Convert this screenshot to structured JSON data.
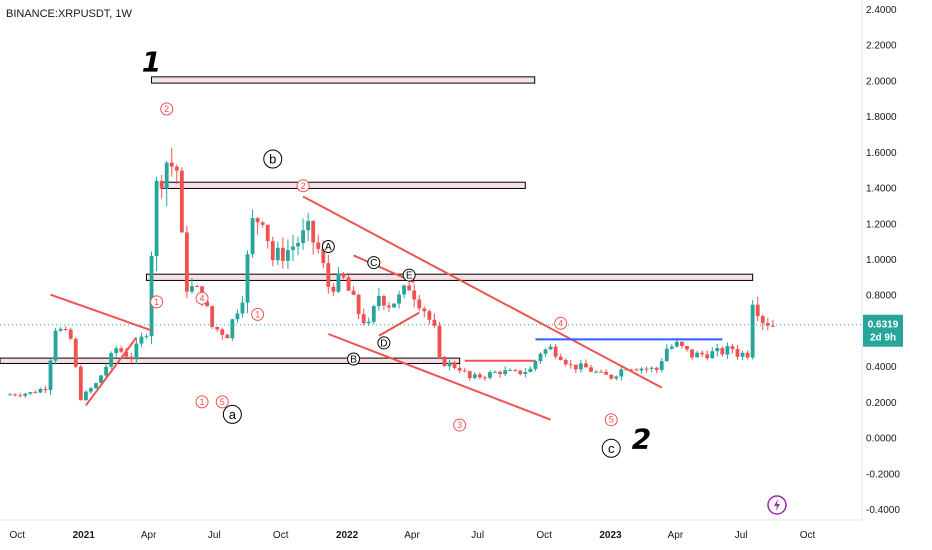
{
  "header": {
    "symbol": "BINANCE:XRPUSDT, 1W"
  },
  "price_tag": {
    "price": "0.6319",
    "countdown": "2d 9h",
    "color": "#26a69a"
  },
  "colors": {
    "up": "#26a69a",
    "down": "#ef5350",
    "trend": "#ef5350",
    "support": "#2962ff",
    "zone_fill": "#f8e1e6",
    "zone_stroke": "#000000"
  },
  "icons": {
    "flash": "lightning-icon"
  },
  "chart_data": {
    "type": "candlestick",
    "y_axis": {
      "ylim": [
        -0.45,
        2.45
      ],
      "ticks": [
        "2.4000",
        "2.2000",
        "2.0000",
        "1.8000",
        "1.6000",
        "1.4000",
        "1.2000",
        "1.0000",
        "0.8000",
        "0.6000",
        "0.4000",
        "0.2000",
        "0.0000",
        "-0.2000",
        "-0.4000"
      ]
    },
    "x_axis": {
      "ticks": [
        {
          "label": "Oct",
          "date": "2020-10-01",
          "year": false
        },
        {
          "label": "2021",
          "date": "2021-01-01",
          "year": true
        },
        {
          "label": "Apr",
          "date": "2021-04-01",
          "year": false
        },
        {
          "label": "Jul",
          "date": "2021-07-01",
          "year": false
        },
        {
          "label": "Oct",
          "date": "2021-10-01",
          "year": false
        },
        {
          "label": "2022",
          "date": "2022-01-01",
          "year": true
        },
        {
          "label": "Apr",
          "date": "2022-04-01",
          "year": false
        },
        {
          "label": "Jul",
          "date": "2022-07-01",
          "year": false
        },
        {
          "label": "Oct",
          "date": "2022-10-01",
          "year": false
        },
        {
          "label": "2023",
          "date": "2023-01-01",
          "year": true
        },
        {
          "label": "Apr",
          "date": "2023-04-01",
          "year": false
        },
        {
          "label": "Jul",
          "date": "2023-07-01",
          "year": false
        },
        {
          "label": "Oct",
          "date": "2023-10-01",
          "year": false
        }
      ]
    },
    "anchors": [
      [
        "2020-09-14",
        0.24
      ],
      [
        "2020-10-19",
        0.25
      ],
      [
        "2020-11-09",
        0.28
      ],
      [
        "2020-11-23",
        0.62
      ],
      [
        "2020-12-14",
        0.55
      ],
      [
        "2020-12-28",
        0.22
      ],
      [
        "2021-01-18",
        0.3
      ],
      [
        "2021-02-01",
        0.4
      ],
      [
        "2021-02-15",
        0.5
      ],
      [
        "2021-03-08",
        0.45
      ],
      [
        "2021-03-29",
        0.6
      ],
      [
        "2021-04-05",
        1.05
      ],
      [
        "2021-04-12",
        1.4
      ],
      [
        "2021-04-26",
        1.55
      ],
      [
        "2021-05-10",
        1.5
      ],
      [
        "2021-05-17",
        1.1
      ],
      [
        "2021-05-24",
        0.85
      ],
      [
        "2021-06-14",
        0.8
      ],
      [
        "2021-06-28",
        0.62
      ],
      [
        "2021-07-19",
        0.58
      ],
      [
        "2021-08-09",
        0.8
      ],
      [
        "2021-08-23",
        1.2
      ],
      [
        "2021-09-06",
        1.25
      ],
      [
        "2021-09-20",
        1.0
      ],
      [
        "2021-10-11",
        1.05
      ],
      [
        "2021-10-25",
        1.1
      ],
      [
        "2021-11-08",
        1.15
      ],
      [
        "2021-11-22",
        1.05
      ],
      [
        "2021-12-06",
        0.85
      ],
      [
        "2021-12-27",
        0.88
      ],
      [
        "2022-01-17",
        0.7
      ],
      [
        "2022-01-31",
        0.62
      ],
      [
        "2022-02-14",
        0.8
      ],
      [
        "2022-02-28",
        0.75
      ],
      [
        "2022-03-14",
        0.78
      ],
      [
        "2022-03-28",
        0.85
      ],
      [
        "2022-04-18",
        0.72
      ],
      [
        "2022-05-02",
        0.6
      ],
      [
        "2022-05-09",
        0.43
      ],
      [
        "2022-06-06",
        0.39
      ],
      [
        "2022-06-20",
        0.33
      ],
      [
        "2022-07-11",
        0.35
      ],
      [
        "2022-08-01",
        0.37
      ],
      [
        "2022-08-22",
        0.36
      ],
      [
        "2022-09-12",
        0.38
      ],
      [
        "2022-09-26",
        0.48
      ],
      [
        "2022-10-10",
        0.5
      ],
      [
        "2022-10-24",
        0.46
      ],
      [
        "2022-11-07",
        0.4
      ],
      [
        "2022-11-28",
        0.39
      ],
      [
        "2022-12-19",
        0.35
      ],
      [
        "2023-01-02",
        0.34
      ],
      [
        "2023-01-23",
        0.4
      ],
      [
        "2023-02-13",
        0.39
      ],
      [
        "2023-03-06",
        0.38
      ],
      [
        "2023-03-20",
        0.5
      ],
      [
        "2023-04-03",
        0.52
      ],
      [
        "2023-04-24",
        0.46
      ],
      [
        "2023-05-15",
        0.47
      ],
      [
        "2023-06-05",
        0.48
      ],
      [
        "2023-06-19",
        0.5
      ],
      [
        "2023-06-26",
        0.47
      ],
      [
        "2023-07-10",
        0.47
      ],
      [
        "2023-07-17",
        0.78
      ],
      [
        "2023-07-31",
        0.66
      ],
      [
        "2023-08-14",
        0.63
      ]
    ],
    "horizontal_zones": [
      {
        "from": "2021-04-05",
        "to": "2022-09-18",
        "low": 1.985,
        "high": 2.02
      },
      {
        "from": "2021-04-19",
        "to": "2022-09-05",
        "low": 1.395,
        "high": 1.43
      },
      {
        "from": "2021-03-29",
        "to": "2023-07-17",
        "low": 0.88,
        "high": 0.915
      },
      {
        "from": "2020-09-07",
        "to": "2022-06-06",
        "low": 0.415,
        "high": 0.445
      }
    ],
    "trend_lines": [
      {
        "name": "sym-triangle-upper",
        "from": [
          "2020-11-16",
          0.8
        ],
        "to": [
          "2021-04-05",
          0.6
        ]
      },
      {
        "name": "sym-triangle-lower",
        "from": [
          "2021-01-04",
          0.18
        ],
        "to": [
          "2021-03-15",
          0.56
        ]
      },
      {
        "name": "wedge-upper",
        "from": [
          "2021-11-01",
          1.35
        ],
        "to": [
          "2023-03-13",
          0.28
        ]
      },
      {
        "name": "wedge-lower",
        "from": [
          "2021-12-06",
          0.58
        ],
        "to": [
          "2022-10-10",
          0.1
        ]
      },
      {
        "name": "abcde-upper",
        "from": [
          "2022-01-10",
          1.02
        ],
        "to": [
          "2022-04-04",
          0.87
        ]
      },
      {
        "name": "abcde-lower",
        "from": [
          "2022-02-14",
          0.57
        ],
        "to": [
          "2022-04-11",
          0.7
        ]
      },
      {
        "name": "short-support",
        "from": [
          "2022-06-13",
          0.43
        ],
        "to": [
          "2022-09-19",
          0.43
        ]
      }
    ],
    "support_line": {
      "from": [
        "2022-09-19",
        0.55
      ],
      "to": [
        "2023-06-05",
        0.55
      ]
    },
    "current_price": 0.6319,
    "annotations": [
      {
        "text": "1",
        "date": "2021-04-05",
        "price": 2.05,
        "style": "big"
      },
      {
        "text": "2",
        "date": "2023-02-13",
        "price": -0.06,
        "style": "big"
      },
      {
        "text": "2",
        "date": "2021-04-26",
        "price": 1.84,
        "style": "red-circle"
      },
      {
        "text": "1",
        "date": "2021-04-12",
        "price": 0.76,
        "style": "red-circle"
      },
      {
        "text": "4",
        "date": "2021-06-14",
        "price": 0.78,
        "style": "red-circle"
      },
      {
        "text": "1",
        "date": "2021-06-14",
        "price": 0.2,
        "style": "red-circle"
      },
      {
        "text": "5",
        "date": "2021-07-12",
        "price": 0.2,
        "style": "red-circle"
      },
      {
        "text": "1",
        "date": "2021-08-30",
        "price": 0.69,
        "style": "red-circle"
      },
      {
        "text": "2",
        "date": "2021-11-01",
        "price": 1.41,
        "style": "red-circle"
      },
      {
        "text": "3",
        "date": "2022-06-06",
        "price": 0.07,
        "style": "red-circle"
      },
      {
        "text": "4",
        "date": "2022-10-24",
        "price": 0.64,
        "style": "red-circle"
      },
      {
        "text": "5",
        "date": "2023-01-02",
        "price": 0.1,
        "style": "red-circle"
      },
      {
        "text": "a",
        "date": "2021-07-26",
        "price": 0.13,
        "style": "black-circle"
      },
      {
        "text": "b",
        "date": "2021-09-20",
        "price": 1.56,
        "style": "black-circle"
      },
      {
        "text": "c",
        "date": "2023-01-02",
        "price": -0.06,
        "style": "black-circle"
      },
      {
        "text": "A",
        "date": "2021-12-06",
        "price": 1.07,
        "style": "black-circle-small"
      },
      {
        "text": "C",
        "date": "2022-02-07",
        "price": 0.98,
        "style": "black-circle-small"
      },
      {
        "text": "E",
        "date": "2022-03-28",
        "price": 0.91,
        "style": "black-circle-small"
      },
      {
        "text": "B",
        "date": "2022-01-10",
        "price": 0.44,
        "style": "black-circle-small"
      },
      {
        "text": "D",
        "date": "2022-02-21",
        "price": 0.53,
        "style": "black-circle-small"
      }
    ]
  }
}
